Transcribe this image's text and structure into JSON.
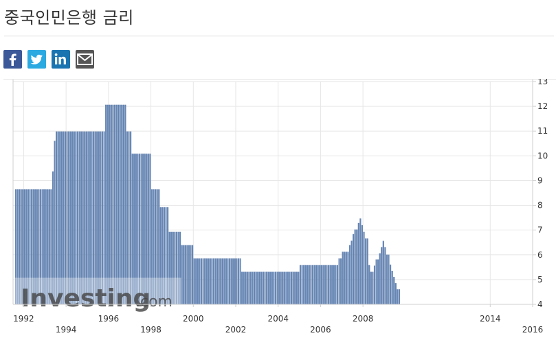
{
  "page": {
    "title": "중국인민은행 금리"
  },
  "share": {
    "icons": [
      "facebook-icon",
      "twitter-icon",
      "linkedin-icon",
      "email-icon"
    ]
  },
  "watermark": {
    "text_main": "Investing",
    "text_suffix": ".com"
  },
  "colors": {
    "bar": "#6687b6",
    "bar_edge": "#4d6e9e",
    "grid": "#e6e6e6",
    "axis": "#cfcfcf"
  },
  "chart_data": {
    "type": "bar",
    "title": "중국인민은행 금리",
    "ylim": [
      4,
      13
    ],
    "y_ticks": [
      4,
      5,
      6,
      7,
      8,
      9,
      10,
      11,
      12,
      13
    ],
    "x_ticks_row1": [
      "1992",
      "1996",
      "2000",
      "2004",
      "2008",
      "2014"
    ],
    "x_ticks_row2": [
      "1994",
      "1998",
      "2002",
      "2006",
      "2016"
    ],
    "xlim": [
      1991.5,
      2016.0
    ],
    "grid": true,
    "series": [
      {
        "points": [
          [
            1991.6,
            8.64
          ],
          [
            1993.2,
            8.64
          ],
          [
            1993.3,
            9.36
          ],
          [
            1993.4,
            10.6
          ],
          [
            1993.5,
            10.98
          ],
          [
            1995.7,
            10.98
          ],
          [
            1995.8,
            12.06
          ],
          [
            1996.7,
            12.06
          ],
          [
            1996.8,
            10.98
          ],
          [
            1997.0,
            10.98
          ],
          [
            1997.1,
            10.08
          ],
          [
            1997.8,
            10.08
          ],
          [
            1998.0,
            8.64
          ],
          [
            1998.2,
            8.64
          ],
          [
            1998.4,
            7.92
          ],
          [
            1998.6,
            7.92
          ],
          [
            1998.8,
            6.93
          ],
          [
            1999.2,
            6.93
          ],
          [
            1999.4,
            6.39
          ],
          [
            1999.8,
            6.39
          ],
          [
            2000.0,
            5.85
          ],
          [
            2002.0,
            5.85
          ],
          [
            2002.2,
            5.31
          ],
          [
            2004.8,
            5.31
          ],
          [
            2005.0,
            5.58
          ],
          [
            2006.6,
            5.58
          ],
          [
            2006.8,
            5.85
          ],
          [
            2007.0,
            6.12
          ],
          [
            2007.3,
            6.39
          ],
          [
            2007.4,
            6.57
          ],
          [
            2007.5,
            6.84
          ],
          [
            2007.6,
            7.02
          ],
          [
            2007.7,
            7.29
          ],
          [
            2007.8,
            7.47
          ],
          [
            2007.9,
            7.2
          ],
          [
            2008.0,
            6.93
          ],
          [
            2008.1,
            6.66
          ],
          [
            2008.2,
            5.58
          ],
          [
            2008.3,
            5.31
          ],
          [
            2008.5,
            5.56
          ],
          [
            2008.6,
            5.81
          ],
          [
            2008.7,
            6.06
          ],
          [
            2008.8,
            6.31
          ],
          [
            2008.9,
            6.56
          ],
          [
            2009.0,
            6.31
          ],
          [
            2009.1,
            6.0
          ],
          [
            2009.2,
            5.6
          ],
          [
            2009.3,
            5.35
          ],
          [
            2009.4,
            5.1
          ],
          [
            2009.5,
            4.85
          ],
          [
            2009.6,
            4.6
          ],
          [
            2009.7,
            4.35
          ]
        ]
      }
    ]
  }
}
